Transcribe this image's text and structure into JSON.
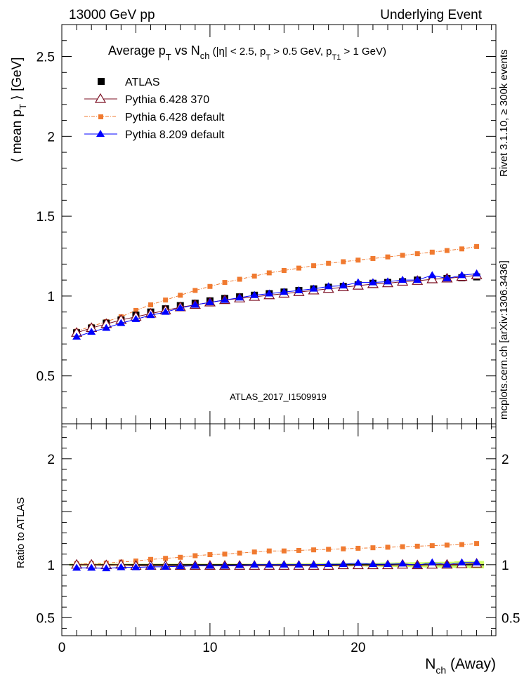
{
  "header": {
    "left": "13000 GeV pp",
    "right": "Underlying Event",
    "side_top": "Rivet 3.1.10, ≥ 300k events",
    "side_bottom": "mcplots.cern.ch [arXiv:1306.3436]",
    "watermark": "ATLAS_2017_I1509919"
  },
  "chart_data": [
    {
      "type": "scatter",
      "title": "Average p_T vs N_ch (|η| < 2.5, p_T > 0.5 GeV, p_T1 > 1 GeV)",
      "title_parts": {
        "a": "Average p",
        "b": "T",
        "c": " vs N",
        "d": "ch",
        "e": " (|η| < 2.5, p",
        "f": "T",
        "g": " > 0.5 GeV, p",
        "h": "T1",
        "i": " > 1 GeV)"
      },
      "ylabel": "⟨ mean p_T ⟩ [GeV]",
      "ylabel_parts": {
        "a": "⟨ mean p",
        "b": "T",
        "c": " ⟩ [GeV]"
      },
      "xlim": [
        0,
        29.3
      ],
      "ylim": [
        0.2,
        2.7
      ],
      "yticks": [
        0.5,
        1,
        1.5,
        2,
        2.5
      ],
      "ytick_labels": [
        "0.5",
        "1",
        "1.5",
        "2",
        "2.5"
      ],
      "legend_position": "top-left",
      "x": [
        1,
        2,
        3,
        4,
        5,
        6,
        7,
        8,
        9,
        10,
        11,
        12,
        13,
        14,
        15,
        16,
        17,
        18,
        19,
        20,
        21,
        22,
        23,
        24,
        25,
        26,
        27,
        28
      ],
      "series": [
        {
          "name": "ATLAS",
          "color": "#000000",
          "marker": "square",
          "values": [
            0.77,
            0.8,
            0.83,
            0.85,
            0.88,
            0.9,
            0.92,
            0.94,
            0.955,
            0.97,
            0.985,
            0.995,
            1.005,
            1.015,
            1.025,
            1.035,
            1.045,
            1.055,
            1.06,
            1.07,
            1.08,
            1.085,
            1.09,
            1.1,
            1.105,
            1.11,
            1.115,
            1.12
          ]
        },
        {
          "name": "Pythia 6.428 370",
          "color": "#7b0f22",
          "marker": "triangle-open",
          "values": [
            0.77,
            0.8,
            0.825,
            0.85,
            0.87,
            0.89,
            0.91,
            0.93,
            0.945,
            0.96,
            0.975,
            0.985,
            0.995,
            1.005,
            1.015,
            1.025,
            1.035,
            1.045,
            1.055,
            1.065,
            1.075,
            1.08,
            1.09,
            1.095,
            1.105,
            1.11,
            1.12,
            1.13
          ]
        },
        {
          "name": "Pythia 6.428 default",
          "color": "#f07a30",
          "marker": "square-small",
          "values": [
            0.78,
            0.81,
            0.84,
            0.87,
            0.91,
            0.945,
            0.975,
            1.005,
            1.035,
            1.06,
            1.085,
            1.105,
            1.125,
            1.145,
            1.16,
            1.175,
            1.19,
            1.205,
            1.215,
            1.225,
            1.235,
            1.245,
            1.255,
            1.265,
            1.275,
            1.285,
            1.295,
            1.31
          ]
        },
        {
          "name": "Pythia 8.209 default",
          "color": "#0000ff",
          "marker": "triangle",
          "values": [
            0.745,
            0.775,
            0.8,
            0.83,
            0.855,
            0.88,
            0.9,
            0.925,
            0.945,
            0.96,
            0.975,
            0.99,
            1.005,
            1.015,
            1.025,
            1.035,
            1.045,
            1.06,
            1.065,
            1.085,
            1.085,
            1.09,
            1.1,
            1.1,
            1.13,
            1.11,
            1.13,
            1.14
          ]
        }
      ]
    },
    {
      "type": "scatter",
      "ylabel": "Ratio to ATLAS",
      "xlabel": "N_ch (Away)",
      "xlabel_parts": {
        "a": "N",
        "b": "ch",
        "c": " (Away)"
      },
      "xlim": [
        0,
        29.3
      ],
      "ylim": [
        0.33,
        2.33
      ],
      "yticks": [
        0.5,
        1,
        2
      ],
      "ytick_labels": [
        "0.5",
        "1",
        "2"
      ],
      "xticks": [
        0,
        10,
        20
      ],
      "xtick_labels": [
        "0",
        "10",
        "20"
      ],
      "band_color": "#ccff66",
      "x": [
        1,
        2,
        3,
        4,
        5,
        6,
        7,
        8,
        9,
        10,
        11,
        12,
        13,
        14,
        15,
        16,
        17,
        18,
        19,
        20,
        21,
        22,
        23,
        24,
        25,
        26,
        27,
        28
      ],
      "band_halfwidth": [
        0.01,
        0.01,
        0.01,
        0.01,
        0.01,
        0.01,
        0.01,
        0.01,
        0.01,
        0.01,
        0.01,
        0.01,
        0.01,
        0.01,
        0.012,
        0.012,
        0.014,
        0.014,
        0.016,
        0.016,
        0.018,
        0.02,
        0.022,
        0.024,
        0.026,
        0.028,
        0.032,
        0.035
      ],
      "series": [
        {
          "name": "Pythia 6.428 370",
          "color": "#7b0f22",
          "marker": "triangle-open",
          "values": [
            1.0,
            1.0,
            0.995,
            1.0,
            0.99,
            0.99,
            0.99,
            0.99,
            0.99,
            0.99,
            0.99,
            0.99,
            0.99,
            0.99,
            0.99,
            0.99,
            0.99,
            0.99,
            0.995,
            0.995,
            0.995,
            0.995,
            1.0,
            0.995,
            1.0,
            1.0,
            1.005,
            1.01
          ]
        },
        {
          "name": "Pythia 6.428 default",
          "color": "#f07a30",
          "marker": "square-small",
          "values": [
            1.01,
            1.01,
            1.015,
            1.025,
            1.035,
            1.05,
            1.06,
            1.07,
            1.085,
            1.095,
            1.1,
            1.11,
            1.12,
            1.13,
            1.13,
            1.135,
            1.14,
            1.145,
            1.15,
            1.155,
            1.16,
            1.165,
            1.17,
            1.175,
            1.18,
            1.185,
            1.19,
            1.2
          ]
        },
        {
          "name": "Pythia 8.209 default",
          "color": "#0000ff",
          "marker": "triangle",
          "values": [
            0.97,
            0.97,
            0.965,
            0.975,
            0.975,
            0.98,
            0.98,
            0.985,
            0.99,
            0.99,
            0.99,
            0.995,
            1.0,
            1.0,
            1.0,
            1.0,
            1.0,
            1.005,
            1.005,
            1.015,
            1.005,
            1.005,
            1.01,
            0.995,
            1.02,
            1.0,
            1.02,
            1.02
          ]
        }
      ]
    }
  ]
}
